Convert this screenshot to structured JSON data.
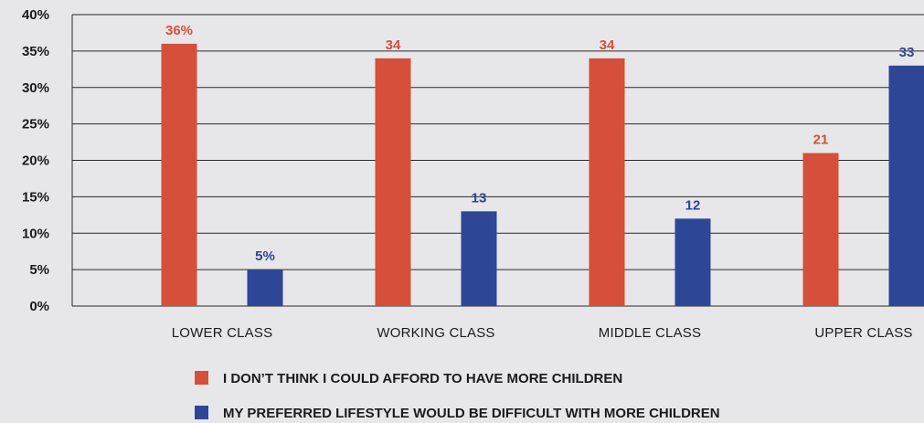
{
  "chart_data": {
    "type": "bar",
    "categories": [
      "LOWER CLASS",
      "WORKING CLASS",
      "MIDDLE CLASS",
      "UPPER CLASS"
    ],
    "series": [
      {
        "name": "I DON’T THINK I COULD AFFORD TO HAVE MORE CHILDREN",
        "values": [
          36,
          34,
          34,
          21
        ],
        "labels": [
          "36%",
          "34",
          "34",
          "21"
        ],
        "color": "#d64f3a"
      },
      {
        "name": "MY PREFERRED LIFESTYLE WOULD BE DIFFICULT WITH MORE CHILDREN",
        "values": [
          5,
          13,
          12,
          33
        ],
        "labels": [
          "5%",
          "13",
          "12",
          "33"
        ],
        "color": "#2e4696"
      }
    ],
    "yticks": [
      "0%",
      "5%",
      "10%",
      "15%",
      "20%",
      "25%",
      "30%",
      "35%",
      "40%"
    ],
    "ylim": [
      0,
      40
    ],
    "grid": true,
    "legend": "bottom"
  }
}
